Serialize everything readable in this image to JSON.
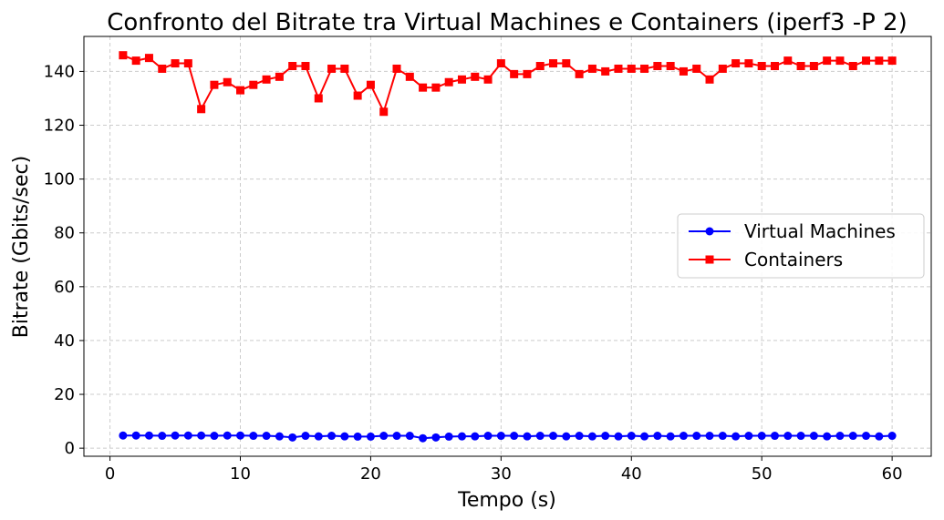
{
  "chart_data": {
    "type": "line",
    "title": "Confronto del Bitrate tra Virtual Machines e Containers (iperf3 -P 2)",
    "xlabel": "Tempo (s)",
    "ylabel": "Bitrate (Gbits/sec)",
    "xlim": [
      -2.0,
      63.0
    ],
    "ylim": [
      -3,
      153
    ],
    "xticks": [
      0,
      10,
      20,
      30,
      40,
      50,
      60
    ],
    "yticks": [
      0,
      20,
      40,
      60,
      80,
      100,
      120,
      140
    ],
    "grid": true,
    "legend_position": "center-right",
    "x": [
      1,
      2,
      3,
      4,
      5,
      6,
      7,
      8,
      9,
      10,
      11,
      12,
      13,
      14,
      15,
      16,
      17,
      18,
      19,
      20,
      21,
      22,
      23,
      24,
      25,
      26,
      27,
      28,
      29,
      30,
      31,
      32,
      33,
      34,
      35,
      36,
      37,
      38,
      39,
      40,
      41,
      42,
      43,
      44,
      45,
      46,
      47,
      48,
      49,
      50,
      51,
      52,
      53,
      54,
      55,
      56,
      57,
      58,
      59,
      60
    ],
    "series": [
      {
        "name": "Virtual Machines",
        "color": "#0000ff",
        "marker": "circle",
        "values": [
          4.7,
          4.7,
          4.7,
          4.6,
          4.7,
          4.7,
          4.7,
          4.6,
          4.7,
          4.7,
          4.6,
          4.6,
          4.4,
          4.0,
          4.6,
          4.4,
          4.6,
          4.4,
          4.3,
          4.3,
          4.6,
          4.6,
          4.6,
          3.7,
          4.0,
          4.3,
          4.4,
          4.4,
          4.6,
          4.6,
          4.6,
          4.4,
          4.6,
          4.6,
          4.4,
          4.6,
          4.4,
          4.6,
          4.4,
          4.6,
          4.4,
          4.6,
          4.4,
          4.6,
          4.6,
          4.6,
          4.6,
          4.4,
          4.6,
          4.6,
          4.6,
          4.6,
          4.6,
          4.6,
          4.4,
          4.6,
          4.6,
          4.6,
          4.4,
          4.6
        ]
      },
      {
        "name": "Containers",
        "color": "#ff0000",
        "marker": "square",
        "values": [
          146,
          144,
          145,
          141,
          143,
          143,
          126,
          135,
          136,
          133,
          135,
          137,
          138,
          142,
          142,
          130,
          141,
          141,
          131,
          135,
          125,
          141,
          138,
          134,
          134,
          136,
          137,
          138,
          137,
          143,
          139,
          139,
          142,
          143,
          143,
          139,
          141,
          140,
          141,
          141,
          141,
          142,
          142,
          140,
          141,
          137,
          141,
          143,
          143,
          142,
          142,
          144,
          142,
          142,
          144,
          144,
          142,
          144,
          144,
          144
        ]
      }
    ]
  }
}
